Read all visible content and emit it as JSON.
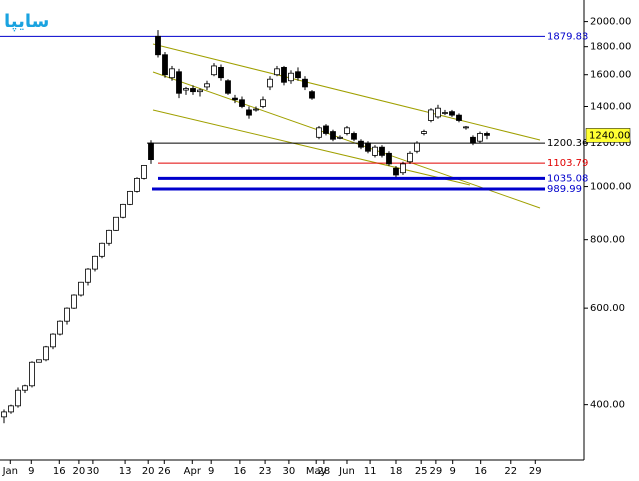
{
  "chart_data": {
    "type": "candlestick",
    "title": "سايپا",
    "log_scale": true,
    "ylim": [
      317,
      2190
    ],
    "yticks": [
      {
        "value": 2000,
        "label": "2000.00"
      },
      {
        "value": 1800,
        "label": "1800.00"
      },
      {
        "value": 1600,
        "label": "1600.00"
      },
      {
        "value": 1400,
        "label": "1400.00"
      },
      {
        "value": 1200,
        "label": "1200.00"
      },
      {
        "value": 1000,
        "label": "1000.00"
      },
      {
        "value": 800,
        "label": "800.00"
      },
      {
        "value": 600,
        "label": "600.00"
      },
      {
        "value": 400,
        "label": "400.00"
      }
    ],
    "xlim": [
      -0.57,
      82.86
    ],
    "xticks": [
      {
        "value": 0.9,
        "label": "Jan"
      },
      {
        "value": 3.9,
        "label": "9"
      },
      {
        "value": 7.9,
        "label": "16"
      },
      {
        "value": 10.7,
        "label": "20"
      },
      {
        "value": 12.7,
        "label": "30"
      },
      {
        "value": 17.3,
        "label": "13"
      },
      {
        "value": 20.6,
        "label": "20"
      },
      {
        "value": 22.9,
        "label": "26"
      },
      {
        "value": 26.9,
        "label": "Apr"
      },
      {
        "value": 29.6,
        "label": "9"
      },
      {
        "value": 33.7,
        "label": "16"
      },
      {
        "value": 37.3,
        "label": "23"
      },
      {
        "value": 40.7,
        "label": "30"
      },
      {
        "value": 44.6,
        "label": "May"
      },
      {
        "value": 45.7,
        "label": "28"
      },
      {
        "value": 49,
        "label": "Jun"
      },
      {
        "value": 52.3,
        "label": "11"
      },
      {
        "value": 56,
        "label": "18"
      },
      {
        "value": 59.6,
        "label": "25"
      },
      {
        "value": 61.7,
        "label": "29"
      },
      {
        "value": 64.1,
        "label": "9"
      },
      {
        "value": 68.1,
        "label": "16"
      },
      {
        "value": 72.4,
        "label": "22"
      },
      {
        "value": 75.9,
        "label": "29"
      }
    ],
    "open": [
      380,
      388,
      398,
      425,
      433,
      478,
      483,
      510,
      538,
      568,
      600,
      634,
      669,
      707,
      746,
      788,
      832,
      879,
      928,
      980,
      1035,
      1200,
      1880,
      1740,
      1580,
      1620,
      1500,
      1510,
      1490,
      1520,
      1600,
      1650,
      1560,
      1450,
      1440,
      1380,
      1380,
      1400,
      1520,
      1600,
      1650,
      1560,
      1620,
      1570,
      1490,
      1230,
      1290,
      1260,
      1230,
      1250,
      1250,
      1210,
      1200,
      1140,
      1180,
      1150,
      1080,
      1060,
      1110,
      1160,
      1250,
      1320,
      1340,
      1360,
      1370,
      1350,
      1280,
      1230,
      1210,
      1250
    ],
    "high": [
      392,
      400,
      430,
      435,
      480,
      483,
      512,
      540,
      570,
      602,
      636,
      670,
      710,
      748,
      790,
      834,
      880,
      930,
      982,
      1040,
      1095,
      1215,
      1930,
      1760,
      1660,
      1640,
      1520,
      1530,
      1510,
      1560,
      1680,
      1670,
      1570,
      1470,
      1460,
      1400,
      1400,
      1460,
      1590,
      1660,
      1660,
      1630,
      1650,
      1590,
      1500,
      1290,
      1300,
      1270,
      1240,
      1290,
      1260,
      1220,
      1210,
      1190,
      1190,
      1160,
      1090,
      1110,
      1160,
      1210,
      1270,
      1390,
      1410,
      1380,
      1380,
      1360,
      1290,
      1240,
      1260,
      1260
    ],
    "low": [
      370,
      385,
      395,
      420,
      430,
      478,
      480,
      505,
      535,
      560,
      598,
      630,
      660,
      700,
      740,
      780,
      830,
      875,
      925,
      975,
      1030,
      1100,
      1720,
      1580,
      1560,
      1450,
      1470,
      1470,
      1460,
      1500,
      1590,
      1560,
      1470,
      1420,
      1390,
      1330,
      1370,
      1390,
      1500,
      1590,
      1530,
      1540,
      1560,
      1500,
      1440,
      1220,
      1240,
      1210,
      1220,
      1240,
      1210,
      1170,
      1150,
      1130,
      1130,
      1090,
      1040,
      1050,
      1100,
      1150,
      1240,
      1310,
      1330,
      1350,
      1340,
      1310,
      1270,
      1190,
      1200,
      1220
    ],
    "close": [
      388,
      398,
      425,
      433,
      478,
      483,
      510,
      538,
      568,
      600,
      634,
      669,
      707,
      746,
      788,
      832,
      879,
      928,
      980,
      1035,
      1093,
      1120,
      1740,
      1600,
      1640,
      1480,
      1510,
      1490,
      1500,
      1540,
      1660,
      1580,
      1480,
      1440,
      1400,
      1350,
      1385,
      1440,
      1570,
      1640,
      1550,
      1610,
      1580,
      1520,
      1450,
      1280,
      1250,
      1220,
      1230,
      1280,
      1220,
      1180,
      1160,
      1180,
      1140,
      1100,
      1050,
      1100,
      1150,
      1200,
      1260,
      1380,
      1390,
      1365,
      1350,
      1320,
      1285,
      1200,
      1250,
      1240
    ],
    "up_color": "#ffffff",
    "down_color": "#000000",
    "candle_outline": "#000000",
    "levels": [
      {
        "value": 1879.83,
        "color": "#0000cc"
      },
      {
        "value": 1200.36,
        "color": "#000000"
      },
      {
        "value": 1103.79,
        "color": "#e00000"
      },
      {
        "value": 1035.08,
        "color": "#0000cc"
      },
      {
        "value": 989.99,
        "color": "#0000cc"
      }
    ],
    "last_price": {
      "value": 1240,
      "label": "1240.00",
      "color": "#ffff33"
    },
    "channel_color": "#a0a000"
  }
}
